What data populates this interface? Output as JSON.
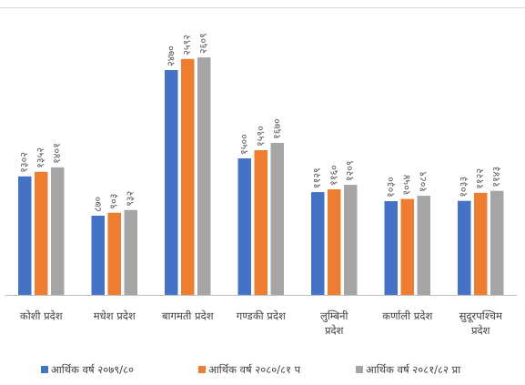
{
  "chart_data": {
    "type": "bar",
    "categories": [
      "कोशी प्रदेश",
      "मधेश प्रदेश",
      "बागमती प्रदेश",
      "गण्डकी प्रदेश",
      "लुम्बिनी प्रदेश",
      "कर्णाली प्रदेश",
      "सुदूरपश्चिम प्रदेश"
    ],
    "series": [
      {
        "name": "आर्थिक वर्ष २०७९/८०",
        "color": "#4472c4",
        "values": [
          1302,
          870,
          2470,
          1500,
          1129,
          1030,
          1033
        ],
        "labels": [
          "१३०२",
          "८७०",
          "२४७०",
          "१५००",
          "११२९",
          "१०३०",
          "१०३३"
        ]
      },
      {
        "name": "आर्थिक वर्ष २०८०/८१ प",
        "color": "#ed7d31",
        "values": [
          1352,
          903,
          2592,
          1590,
          1160,
          1054,
          1122
        ],
        "labels": [
          "१३५२",
          "९०३",
          "२५९२",
          "१५९०",
          "११६०",
          "१०५४",
          "११२२"
        ]
      },
      {
        "name": "आर्थिक वर्ष २०८१/८२ प्रा",
        "color": "#a5a5a5",
        "values": [
          1401,
          932,
          2609,
          1670,
          1209,
          1089,
          1143
        ],
        "labels": [
          "१४०१",
          "९३२",
          "२६०९",
          "१६७०",
          "१२०९",
          "१०८९",
          "११४३"
        ]
      }
    ],
    "ylim": [
      0,
      2800
    ],
    "grid": false,
    "legend_position": "bottom"
  }
}
